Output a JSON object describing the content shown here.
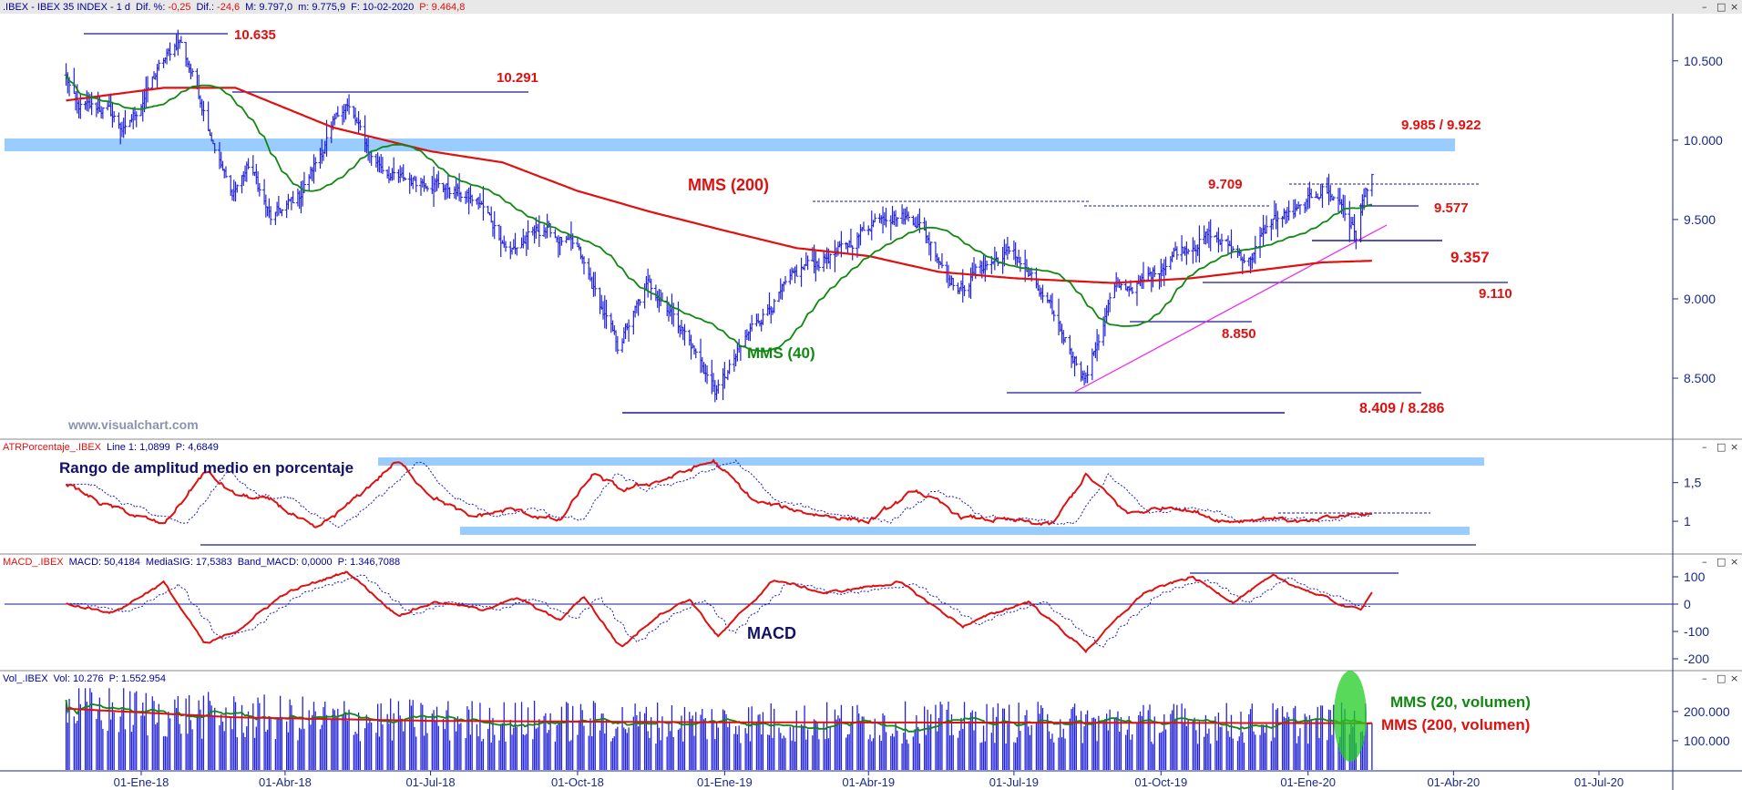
{
  "colors": {
    "price_bar": "#2222dd",
    "ma200": "#e01010",
    "ma40": "#118811",
    "label_red": "#e01010",
    "label_green": "#118811",
    "label_navy": "#111166",
    "band": "#99ccff",
    "support_line": "#1a1a99",
    "trend_line": "#ee22ee",
    "axis_text": "#1a2a8a"
  },
  "header": {
    "main": {
      "name": ".IBEX - IBEX 35 INDEX - 1 d",
      "dif_pct_label": "Dif. %:",
      "dif_pct": "-0,25",
      "dif_label": "Dif.:",
      "dif": "-24,6",
      "m": "M: 9.797,0",
      "m2": "m: 9.775,9",
      "f": "F: 10-02-2020",
      "p": "P: 9.464,8"
    },
    "atr": {
      "name": "ATRPorcentaje_.IBEX",
      "line": "Line 1: 1,0899",
      "p": "P: 4,6849"
    },
    "macd": {
      "name": "MACD_.IBEX",
      "macd": "MACD: 50,4184",
      "sig": "MediaSIG: 17,5383",
      "band": "Band_MACD: 0,0000",
      "p": "P: 1.346,7088"
    },
    "vol": {
      "name": "Vol_.IBEX",
      "vol": "Vol: 10.276",
      "p": "P: 1.552.954"
    }
  },
  "window_buttons": {
    "minimize": "–",
    "restore": "□",
    "close": "×"
  },
  "watermark": "www.visualchart.com",
  "annotations": {
    "level_10635": "10.635",
    "level_10291": "10.291",
    "zone_upper": "9.985 / 9.922",
    "mms200": "MMS (200)",
    "level_9709": "9.709",
    "level_9577": "9.577",
    "level_9357": "9.357",
    "level_9110": "9.110",
    "level_8850": "8.850",
    "mms40": "MMS (40)",
    "zone_lower": "8.409 / 8.286",
    "atr_title": "Rango de amplitud medio en porcentaje",
    "macd_title": "MACD",
    "vol_mms20": "MMS (20, volumen)",
    "vol_mms200": "MMS (200, volumen)"
  },
  "chart_data": [
    {
      "panel": "price",
      "type": "ohlc_bar",
      "series": [
        {
          "name": "MMS (200)"
        },
        {
          "name": "MMS (40)"
        }
      ],
      "y_ticks": [
        "10.500",
        "10.000",
        "9.500",
        "9.000",
        "8.500"
      ],
      "y_tick_values": [
        10500,
        10000,
        9500,
        9000,
        8500
      ],
      "ylim": [
        8150,
        10780
      ],
      "x_ticks": [
        "01-Ene-18",
        "01-Abr-18",
        "01-Jul-18",
        "01-Oct-18",
        "01-Ene-19",
        "01-Abr-19",
        "01-Jul-19",
        "01-Oct-19",
        "01-Ene-20",
        "01-Abr-20",
        "01-Jul-20"
      ],
      "anchors_date": [
        "2017-11-15",
        "2017-11-22",
        "2017-12-10",
        "2017-12-22",
        "2018-01-12",
        "2018-01-25",
        "2018-02-06",
        "2018-02-26",
        "2018-03-10",
        "2018-03-23",
        "2018-04-10",
        "2018-05-09",
        "2018-05-25",
        "2018-06-10",
        "2018-07-01",
        "2018-08-01",
        "2018-08-20",
        "2018-09-10",
        "2018-10-01",
        "2018-10-26",
        "2018-11-15",
        "2018-12-01",
        "2018-12-27",
        "2019-01-20",
        "2019-02-20",
        "2019-03-15",
        "2019-04-10",
        "2019-05-01",
        "2019-05-28",
        "2019-06-10",
        "2019-07-01",
        "2019-07-25",
        "2019-08-15",
        "2019-09-01",
        "2019-09-20",
        "2019-10-10",
        "2019-11-01",
        "2019-11-25",
        "2019-12-10",
        "2019-12-27",
        "2020-01-10",
        "2020-01-22",
        "2020-01-31",
        "2020-02-04",
        "2020-02-10"
      ],
      "anchors_close": [
        10400,
        10200,
        10200,
        10050,
        10450,
        10635,
        10300,
        9650,
        9850,
        9500,
        9650,
        10240,
        9900,
        9750,
        9750,
        9600,
        9300,
        9450,
        9300,
        8700,
        9100,
        8900,
        8409,
        8850,
        9200,
        9300,
        9550,
        9500,
        9050,
        9200,
        9300,
        8900,
        8500,
        9050,
        9100,
        9300,
        9400,
        9250,
        9500,
        9550,
        9700,
        9600,
        9400,
        9600,
        9809
      ],
      "ma200_date": [
        "2017-11-15",
        "2018-01-15",
        "2018-03-01",
        "2018-05-01",
        "2018-07-01",
        "2018-08-15",
        "2018-10-01",
        "2018-11-15",
        "2019-01-01",
        "2019-02-15",
        "2019-04-01",
        "2019-05-15",
        "2019-07-01",
        "2019-09-01",
        "2019-10-20",
        "2019-12-01",
        "2020-01-10",
        "2020-02-10"
      ],
      "ma200_value": [
        10250,
        10330,
        10330,
        10080,
        9930,
        9860,
        9680,
        9550,
        9430,
        9320,
        9270,
        9170,
        9130,
        9100,
        9130,
        9180,
        9230,
        9240
      ]
    },
    {
      "panel": "atr_pct",
      "type": "line",
      "series": [
        {
          "name": "Line 1"
        }
      ],
      "y_ticks": [
        "1,5",
        "1"
      ],
      "y_tick_values": [
        1.5,
        1.0
      ],
      "ylim": [
        0.6,
        1.85
      ],
      "anchors_date": [
        "2017-11-15",
        "2017-12-05",
        "2017-12-25",
        "2018-01-15",
        "2018-02-10",
        "2018-02-28",
        "2018-03-25",
        "2018-04-20",
        "2018-05-10",
        "2018-06-10",
        "2018-07-01",
        "2018-07-25",
        "2018-08-20",
        "2018-09-20",
        "2018-10-10",
        "2018-10-30",
        "2018-11-25",
        "2018-12-25",
        "2019-01-20",
        "2019-02-25",
        "2019-04-01",
        "2019-05-01",
        "2019-05-30",
        "2019-07-01",
        "2019-07-25",
        "2019-08-15",
        "2019-09-10",
        "2019-10-10",
        "2019-11-10",
        "2019-12-10",
        "2020-01-01",
        "2020-01-25",
        "2020-02-10"
      ],
      "anchors_value": [
        1.5,
        1.25,
        1.1,
        0.95,
        1.65,
        1.35,
        1.25,
        0.88,
        1.2,
        1.78,
        1.35,
        1.05,
        1.15,
        1.0,
        1.6,
        1.4,
        1.55,
        1.78,
        1.25,
        1.1,
        1.0,
        1.4,
        1.05,
        1.0,
        0.95,
        1.6,
        1.1,
        1.2,
        1.0,
        1.05,
        0.98,
        1.08,
        1.09
      ]
    },
    {
      "panel": "macd",
      "type": "line",
      "series": [
        {
          "name": "MACD"
        },
        {
          "name": "MediaSIG"
        }
      ],
      "y_ticks": [
        "100",
        "0",
        "-100",
        "-200"
      ],
      "y_tick_values": [
        100,
        0,
        -100,
        -200
      ],
      "ylim": [
        -230,
        130
      ],
      "anchors_date": [
        "2017-11-15",
        "2017-12-15",
        "2018-01-15",
        "2018-02-10",
        "2018-03-01",
        "2018-04-01",
        "2018-05-10",
        "2018-06-10",
        "2018-07-05",
        "2018-08-01",
        "2018-08-25",
        "2018-09-20",
        "2018-10-05",
        "2018-10-28",
        "2018-11-20",
        "2018-12-10",
        "2018-12-28",
        "2019-02-01",
        "2019-03-05",
        "2019-04-20",
        "2019-05-30",
        "2019-06-25",
        "2019-07-10",
        "2019-08-15",
        "2019-09-20",
        "2019-10-20",
        "2019-11-15",
        "2019-12-10",
        "2020-01-05",
        "2020-01-25",
        "2020-02-03",
        "2020-02-10"
      ],
      "anchors_value": [
        0,
        -30,
        80,
        -150,
        -100,
        40,
        120,
        -40,
        10,
        -20,
        20,
        -60,
        30,
        -160,
        -40,
        20,
        -120,
        90,
        40,
        80,
        -80,
        -20,
        10,
        -170,
        40,
        100,
        10,
        100,
        40,
        -10,
        -20,
        50
      ]
    },
    {
      "panel": "volume",
      "type": "bar",
      "series": [
        {
          "name": "Vol"
        },
        {
          "name": "MMS (20, volumen)"
        },
        {
          "name": "MMS (200, volumen)"
        }
      ],
      "y_ticks": [
        "200.000",
        "100.000"
      ],
      "y_tick_values": [
        200000,
        100000
      ],
      "ylim": [
        0,
        290000
      ],
      "vol200_date": [
        "2017-11-15",
        "2018-03-01",
        "2018-07-01",
        "2019-01-01",
        "2019-07-01",
        "2020-02-10"
      ],
      "vol200_value": [
        210000,
        180000,
        168000,
        163000,
        162000,
        160000
      ]
    }
  ]
}
